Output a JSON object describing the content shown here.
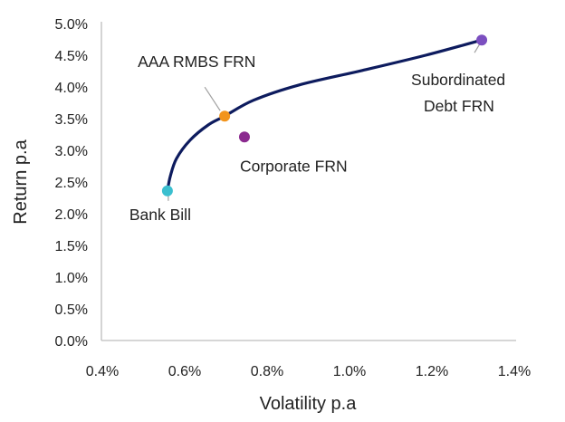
{
  "chart_data": {
    "type": "scatter",
    "title": "",
    "xlabel": "Volatility p.a",
    "ylabel": "Return p.a",
    "xlim": [
      0.4,
      1.4
    ],
    "ylim": [
      0.0,
      5.0
    ],
    "x_ticks": [
      "0.4%",
      "0.6%",
      "0.8%",
      "1.0%",
      "1.2%",
      "1.4%"
    ],
    "y_ticks": [
      "0.0%",
      "0.5%",
      "1.0%",
      "1.5%",
      "2.0%",
      "2.5%",
      "3.0%",
      "3.5%",
      "4.0%",
      "4.5%",
      "5.0%"
    ],
    "grid": false,
    "points": [
      {
        "name": "Bank Bill",
        "x": 0.558,
        "y": 2.36,
        "color": "#3bbfcf"
      },
      {
        "name": "AAA RMBS FRN",
        "x": 0.697,
        "y": 3.54,
        "color": "#f2941c"
      },
      {
        "name": "Corporate FRN",
        "x": 0.745,
        "y": 3.21,
        "color": "#8b2a8f"
      },
      {
        "name": "Subordinated Debt FRN",
        "label_lines": [
          "Subordinated",
          "Debt FRN"
        ],
        "x": 1.321,
        "y": 4.74,
        "color": "#7b4fc0"
      }
    ],
    "frontier": {
      "color": "#0d1b5e",
      "x": [
        0.558,
        0.565,
        0.58,
        0.613,
        0.657,
        0.697,
        0.767,
        0.877,
        1.031,
        1.185,
        1.321
      ],
      "y": [
        2.36,
        2.59,
        2.87,
        3.16,
        3.4,
        3.54,
        3.79,
        4.03,
        4.26,
        4.5,
        4.74
      ]
    }
  }
}
